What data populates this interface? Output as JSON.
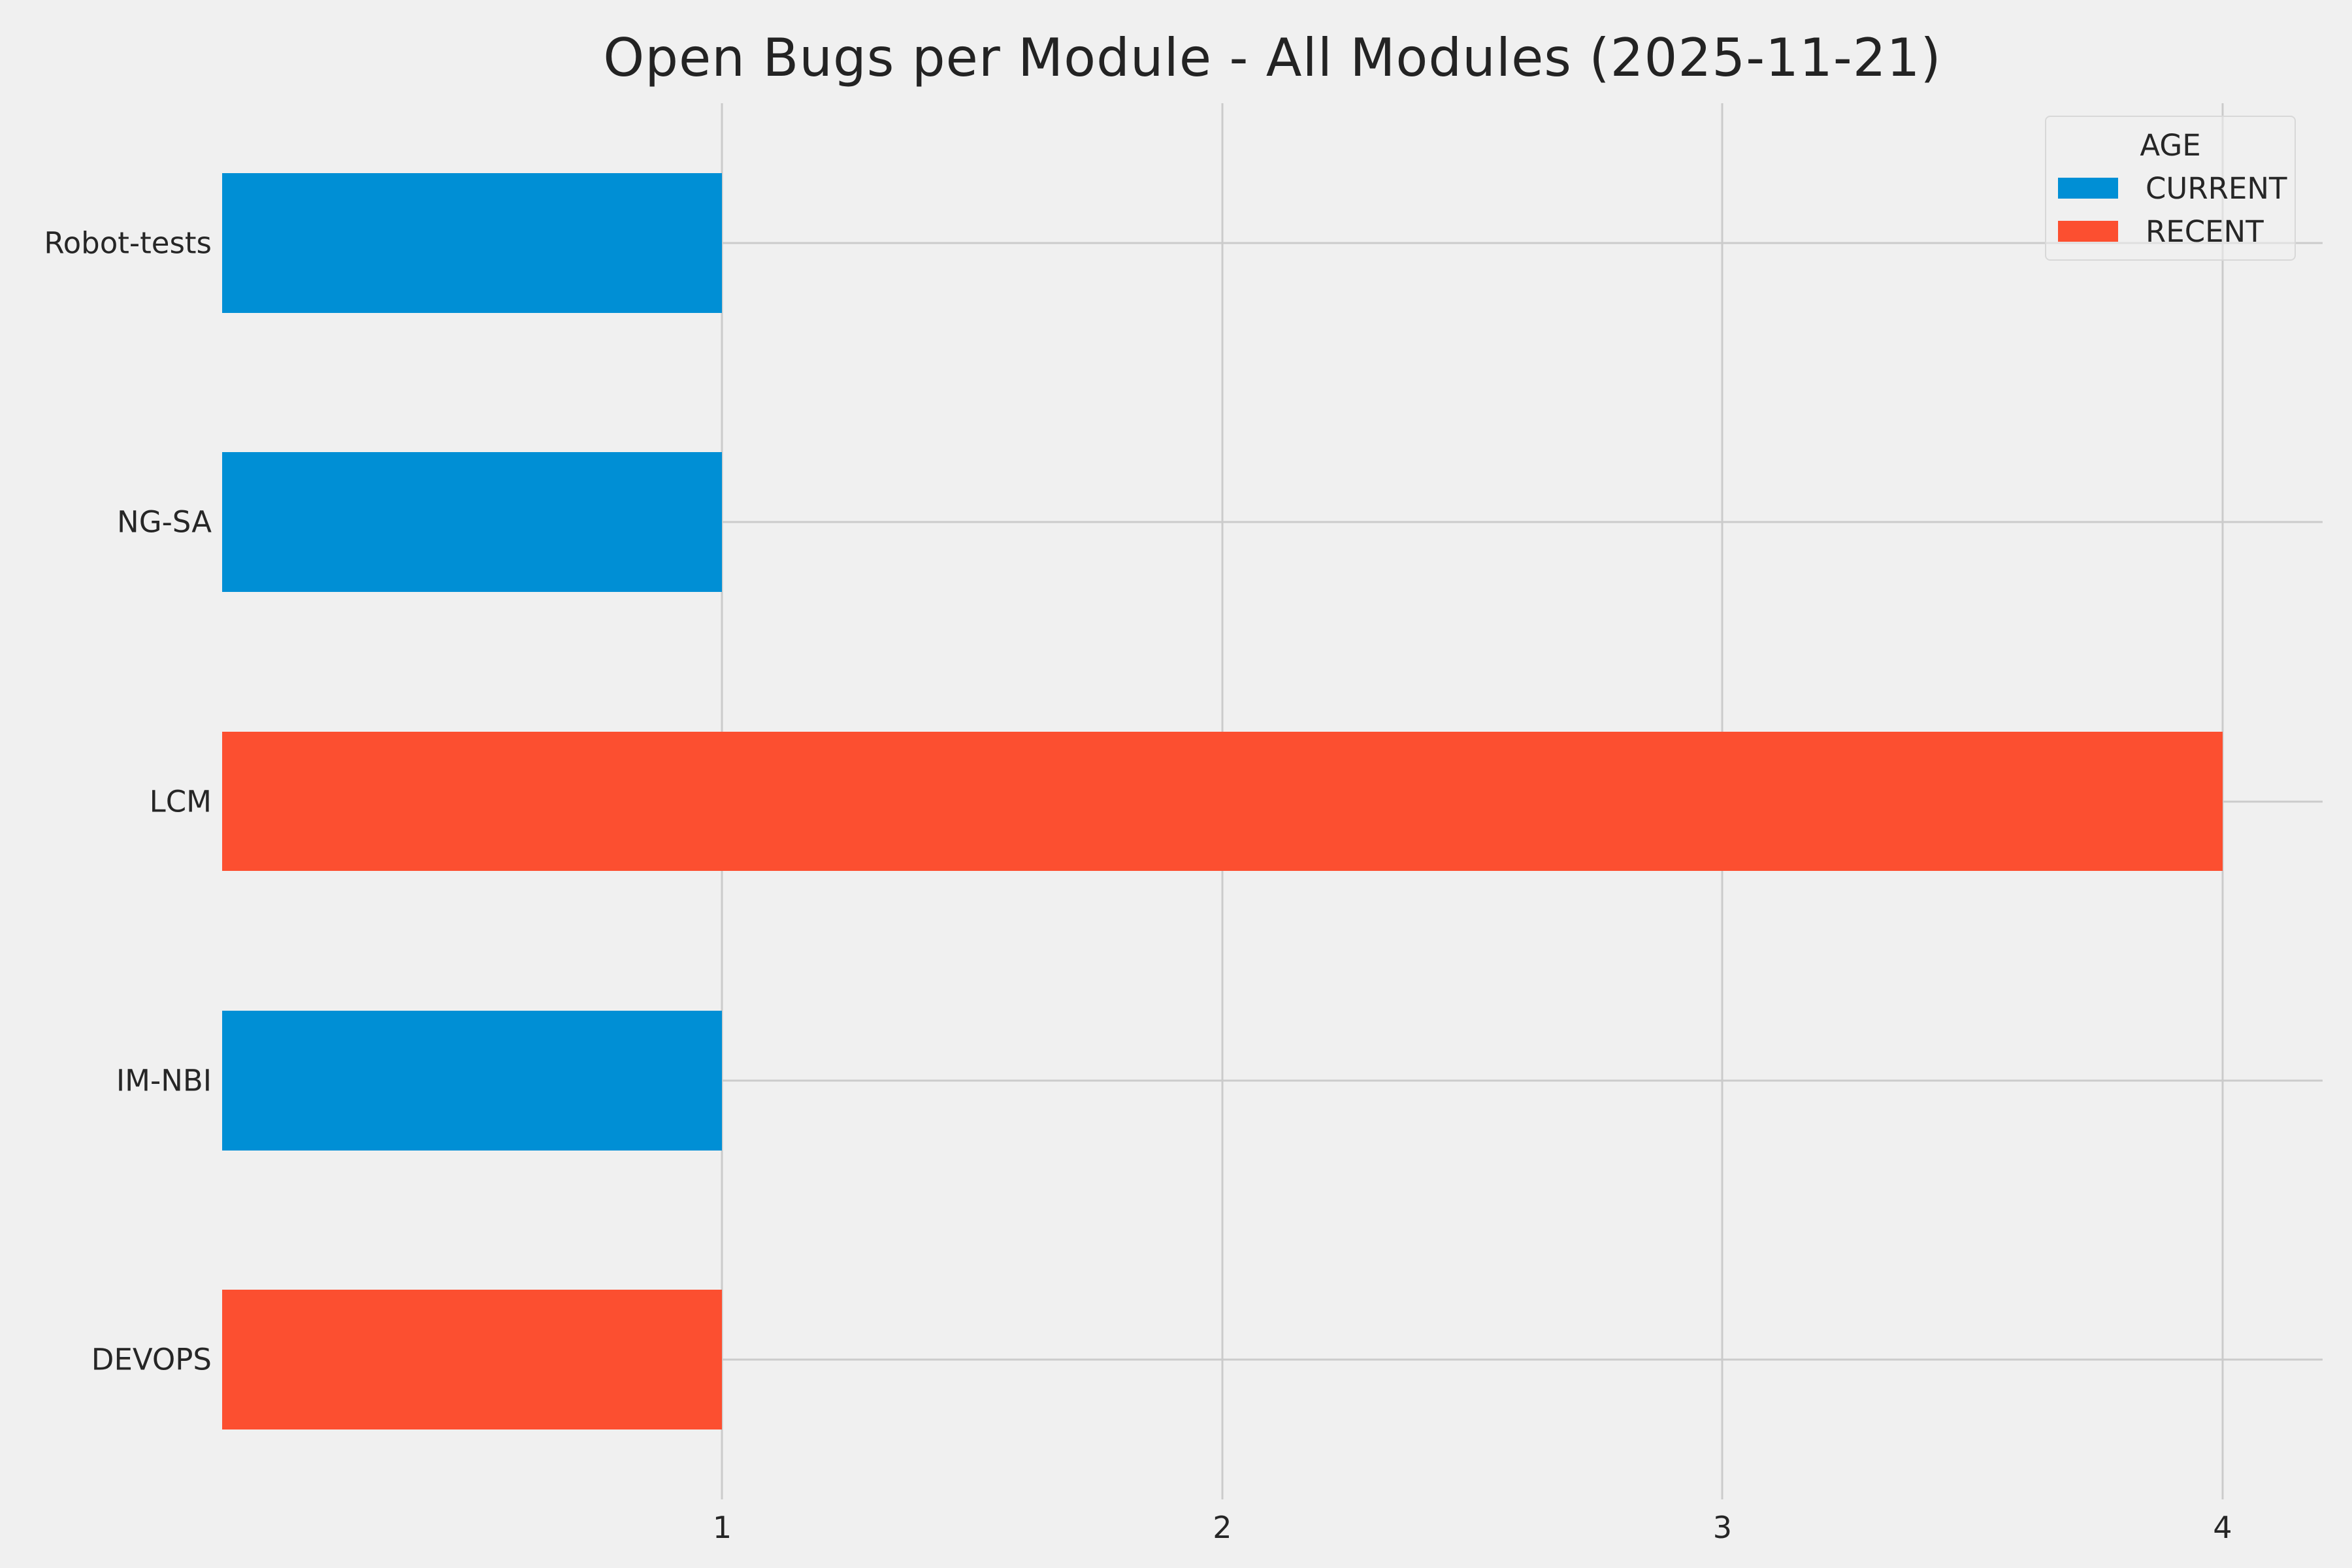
{
  "colors": {
    "background": "#f0f0f0",
    "grid": "#cbcbcb",
    "text": "#262626",
    "legend_border": "#d8d8d8"
  },
  "chart_data": {
    "type": "bar",
    "orientation": "horizontal",
    "title": "Open Bugs per Module - All Modules (2025-11-21)",
    "categories": [
      "Robot-tests",
      "NG-SA",
      "LCM",
      "IM-NBI",
      "DEVOPS"
    ],
    "bars": [
      {
        "category": "Robot-tests",
        "value": 1,
        "age": "CURRENT"
      },
      {
        "category": "NG-SA",
        "value": 1,
        "age": "CURRENT"
      },
      {
        "category": "LCM",
        "value": 4,
        "age": "RECENT"
      },
      {
        "category": "IM-NBI",
        "value": 1,
        "age": "CURRENT"
      },
      {
        "category": "DEVOPS",
        "value": 1,
        "age": "RECENT"
      }
    ],
    "age_colors": {
      "CURRENT": "#008fd5",
      "RECENT": "#fc4f30"
    },
    "xticks": [
      1,
      2,
      3,
      4
    ],
    "xlim": [
      0,
      4.2
    ],
    "grid": true,
    "legend": {
      "title": "AGE",
      "position": "upper right",
      "entries": [
        {
          "label": "CURRENT",
          "color": "#008fd5"
        },
        {
          "label": "RECENT",
          "color": "#fc4f30"
        }
      ]
    }
  }
}
